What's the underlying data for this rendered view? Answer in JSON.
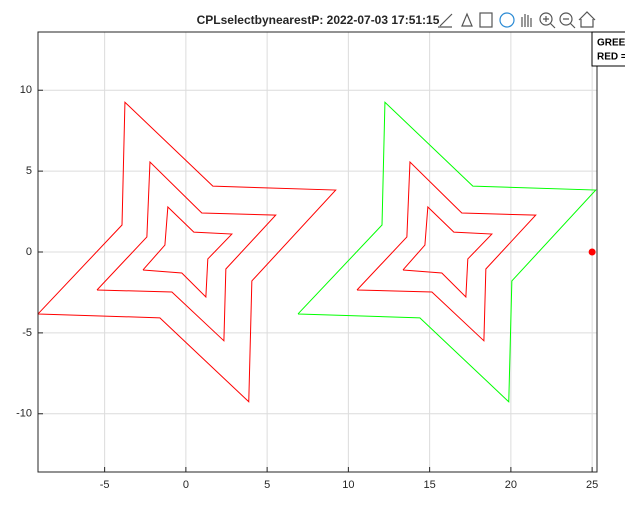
{
  "chart_data": {
    "type": "line",
    "title": "CPLselectbynearestP: 2022-07-03 17:51:15",
    "annotations": [
      "GREE",
      "RED ="
    ],
    "xlim": [
      -9.1,
      25.3
    ],
    "ylim": [
      -13.6,
      13.6
    ],
    "xticks": [
      -5,
      0,
      5,
      10,
      15,
      20,
      25
    ],
    "yticks": [
      -10,
      -5,
      0,
      5,
      10
    ],
    "grid": true,
    "series": [
      {
        "color": "#ff0000",
        "x": [
          -9.1,
          -3.93,
          -3.75,
          1.66,
          9.22,
          4.06,
          3.87,
          -1.6,
          -9.1
        ],
        "values": [
          -3.83,
          1.67,
          9.26,
          4.07,
          3.83,
          -1.79,
          -9.26,
          -4.07,
          -3.83
        ]
      },
      {
        "color": "#ff0000",
        "x": [
          -5.47,
          -2.4,
          -2.21,
          0.98,
          5.53,
          2.46,
          2.34,
          -0.86,
          -5.47
        ],
        "values": [
          -2.35,
          0.93,
          5.56,
          2.41,
          2.28,
          -1.05,
          -5.49,
          -2.47,
          -2.35
        ]
      },
      {
        "color": "#ff0000",
        "x": [
          -2.64,
          -1.29,
          -1.11,
          0.49,
          2.83,
          1.35,
          1.23,
          -0.25,
          -2.64
        ],
        "values": [
          -1.11,
          0.43,
          2.78,
          1.23,
          1.11,
          -0.43,
          -2.78,
          -1.3,
          -1.11
        ]
      },
      {
        "color": "#00ff00",
        "x": [
          6.9,
          12.07,
          12.25,
          17.66,
          25.22,
          20.06,
          19.87,
          14.4,
          6.9
        ],
        "values": [
          -3.83,
          1.67,
          9.26,
          4.07,
          3.83,
          -1.79,
          -9.26,
          -4.07,
          -3.83
        ]
      },
      {
        "color": "#ff0000",
        "x": [
          10.53,
          13.6,
          13.79,
          16.98,
          21.53,
          18.46,
          18.34,
          15.14,
          10.53
        ],
        "values": [
          -2.35,
          0.93,
          5.56,
          2.41,
          2.28,
          -1.05,
          -5.49,
          -2.47,
          -2.35
        ]
      },
      {
        "color": "#ff0000",
        "x": [
          13.36,
          14.71,
          14.89,
          16.49,
          18.83,
          17.35,
          17.23,
          15.75,
          13.36
        ],
        "values": [
          -1.11,
          0.43,
          2.78,
          1.23,
          1.11,
          -0.43,
          -2.78,
          -1.3,
          -1.11
        ]
      },
      {
        "color": "#ff0000",
        "x": [
          25
        ],
        "values": [
          0
        ],
        "line": false
      }
    ]
  }
}
